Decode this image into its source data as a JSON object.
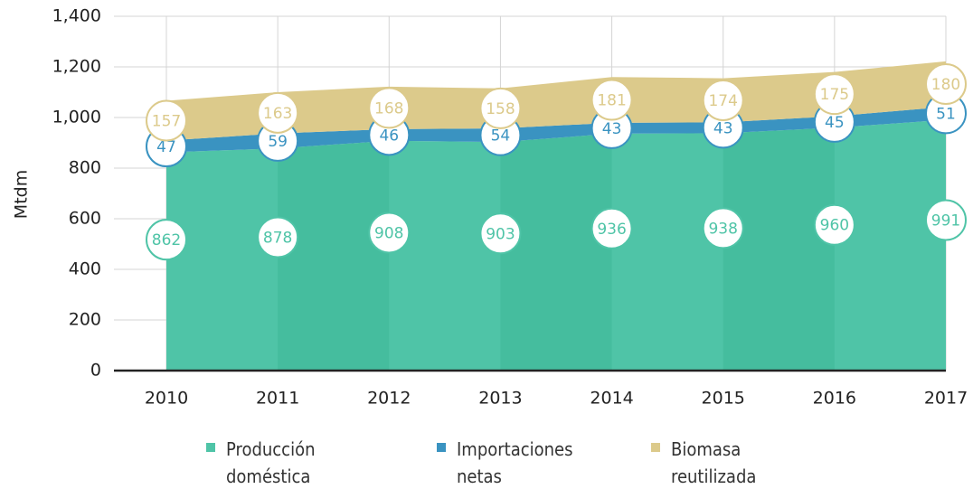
{
  "chart_data": {
    "type": "stacked_area",
    "y_label": "Mtdm",
    "x": [
      2010,
      2011,
      2012,
      2013,
      2014,
      2015,
      2016,
      2017
    ],
    "series": [
      {
        "name": "Producción doméstica",
        "color": "#4fc4a7",
        "values": [
          862,
          878,
          908,
          903,
          936,
          938,
          960,
          991
        ]
      },
      {
        "name": "Importaciones netas",
        "color": "#3a93c1",
        "values": [
          47,
          59,
          46,
          54,
          43,
          43,
          45,
          51
        ]
      },
      {
        "name": "Biomasa reutilizada",
        "color": "#dcca8b",
        "values": [
          157,
          163,
          168,
          158,
          181,
          174,
          175,
          180
        ]
      }
    ],
    "ylim": [
      0,
      1400
    ],
    "yticks": [
      0,
      200,
      400,
      600,
      800,
      {
        "value": 1000,
        "label": "1,000"
      },
      {
        "value": 1200,
        "label": "1,200"
      },
      {
        "value": 1400,
        "label": "1,400"
      }
    ],
    "grid": true
  }
}
